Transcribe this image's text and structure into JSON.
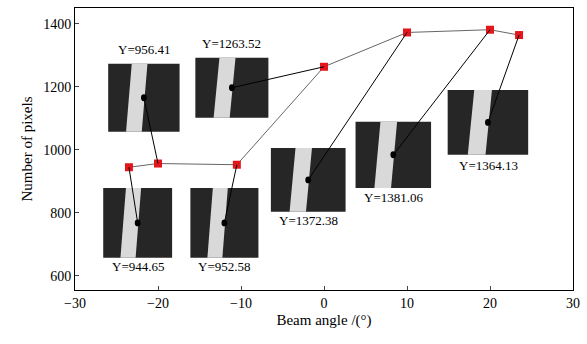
{
  "chart_data": {
    "type": "line",
    "x_label": "Beam angle /(°)",
    "y_label": "Number of pixels",
    "x": [
      -23.5,
      -20,
      -10.5,
      0,
      10,
      20,
      23.5
    ],
    "values": [
      944.65,
      956.41,
      952.58,
      1263.52,
      1372.38,
      1381.06,
      1364.13
    ],
    "value_labels": [
      "Y=944.65",
      "Y=956.41",
      "Y=952.58",
      "Y=1263.52",
      "Y=1372.38",
      "Y=1381.06",
      "Y=1364.13"
    ],
    "data_labels": true,
    "color": "#e3161c",
    "marker": "square",
    "xlim": [
      -30,
      30
    ],
    "xticks": [
      -30,
      -20,
      -10,
      0,
      10,
      20,
      30
    ],
    "ylim": [
      555,
      1450
    ],
    "yticks": [
      600,
      800,
      1000,
      1200,
      1400
    ],
    "grid": false
  }
}
